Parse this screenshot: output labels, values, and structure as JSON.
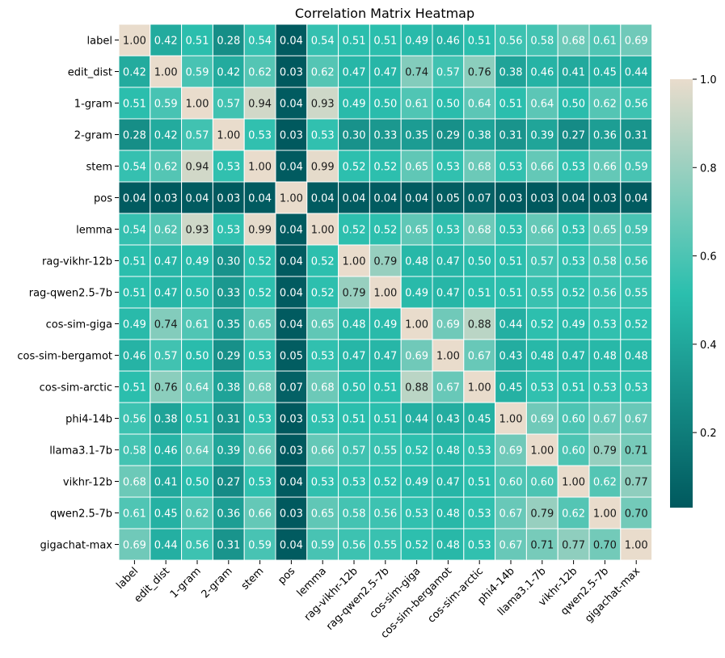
{
  "chart_data": {
    "type": "heatmap",
    "title": "Correlation Matrix Heatmap",
    "labels": [
      "label",
      "edit_dist",
      "1-gram",
      "2-gram",
      "stem",
      "pos",
      "lemma",
      "rag-vikhr-12b",
      "rag-qwen2.5-7b",
      "cos-sim-giga",
      "cos-sim-bergamot",
      "cos-sim-arctic",
      "phi4-14b",
      "llama3.1-7b",
      "vikhr-12b",
      "qwen2.5-7b",
      "gigachat-max"
    ],
    "matrix": [
      [
        1.0,
        0.42,
        0.51,
        0.28,
        0.54,
        0.04,
        0.54,
        0.51,
        0.51,
        0.49,
        0.46,
        0.51,
        0.56,
        0.58,
        0.68,
        0.61,
        0.69
      ],
      [
        0.42,
        1.0,
        0.59,
        0.42,
        0.62,
        0.03,
        0.62,
        0.47,
        0.47,
        0.74,
        0.57,
        0.76,
        0.38,
        0.46,
        0.41,
        0.45,
        0.44
      ],
      [
        0.51,
        0.59,
        1.0,
        0.57,
        0.94,
        0.04,
        0.93,
        0.49,
        0.5,
        0.61,
        0.5,
        0.64,
        0.51,
        0.64,
        0.5,
        0.62,
        0.56
      ],
      [
        0.28,
        0.42,
        0.57,
        1.0,
        0.53,
        0.03,
        0.53,
        0.3,
        0.33,
        0.35,
        0.29,
        0.38,
        0.31,
        0.39,
        0.27,
        0.36,
        0.31
      ],
      [
        0.54,
        0.62,
        0.94,
        0.53,
        1.0,
        0.04,
        0.99,
        0.52,
        0.52,
        0.65,
        0.53,
        0.68,
        0.53,
        0.66,
        0.53,
        0.66,
        0.59
      ],
      [
        0.04,
        0.03,
        0.04,
        0.03,
        0.04,
        1.0,
        0.04,
        0.04,
        0.04,
        0.04,
        0.05,
        0.07,
        0.03,
        0.03,
        0.04,
        0.03,
        0.04
      ],
      [
        0.54,
        0.62,
        0.93,
        0.53,
        0.99,
        0.04,
        1.0,
        0.52,
        0.52,
        0.65,
        0.53,
        0.68,
        0.53,
        0.66,
        0.53,
        0.65,
        0.59
      ],
      [
        0.51,
        0.47,
        0.49,
        0.3,
        0.52,
        0.04,
        0.52,
        1.0,
        0.79,
        0.48,
        0.47,
        0.5,
        0.51,
        0.57,
        0.53,
        0.58,
        0.56
      ],
      [
        0.51,
        0.47,
        0.5,
        0.33,
        0.52,
        0.04,
        0.52,
        0.79,
        1.0,
        0.49,
        0.47,
        0.51,
        0.51,
        0.55,
        0.52,
        0.56,
        0.55
      ],
      [
        0.49,
        0.74,
        0.61,
        0.35,
        0.65,
        0.04,
        0.65,
        0.48,
        0.49,
        1.0,
        0.69,
        0.88,
        0.44,
        0.52,
        0.49,
        0.53,
        0.52
      ],
      [
        0.46,
        0.57,
        0.5,
        0.29,
        0.53,
        0.05,
        0.53,
        0.47,
        0.47,
        0.69,
        1.0,
        0.67,
        0.43,
        0.48,
        0.47,
        0.48,
        0.48
      ],
      [
        0.51,
        0.76,
        0.64,
        0.38,
        0.68,
        0.07,
        0.68,
        0.5,
        0.51,
        0.88,
        0.67,
        1.0,
        0.45,
        0.53,
        0.51,
        0.53,
        0.53
      ],
      [
        0.56,
        0.38,
        0.51,
        0.31,
        0.53,
        0.03,
        0.53,
        0.51,
        0.51,
        0.44,
        0.43,
        0.45,
        1.0,
        0.69,
        0.6,
        0.67,
        0.67
      ],
      [
        0.58,
        0.46,
        0.64,
        0.39,
        0.66,
        0.03,
        0.66,
        0.57,
        0.55,
        0.52,
        0.48,
        0.53,
        0.69,
        1.0,
        0.6,
        0.79,
        0.71
      ],
      [
        0.68,
        0.41,
        0.5,
        0.27,
        0.53,
        0.04,
        0.53,
        0.53,
        0.52,
        0.49,
        0.47,
        0.51,
        0.6,
        0.6,
        1.0,
        0.62,
        0.77
      ],
      [
        0.61,
        0.45,
        0.62,
        0.36,
        0.66,
        0.03,
        0.65,
        0.58,
        0.56,
        0.53,
        0.48,
        0.53,
        0.67,
        0.79,
        0.62,
        1.0,
        0.7
      ],
      [
        0.69,
        0.44,
        0.56,
        0.31,
        0.59,
        0.04,
        0.59,
        0.56,
        0.55,
        0.52,
        0.48,
        0.53,
        0.67,
        0.71,
        0.77,
        0.7,
        1.0
      ]
    ],
    "value_range": [
      0.03,
      1.0
    ],
    "colorbar_ticks": [
      0.2,
      0.4,
      0.6,
      0.8,
      1.0
    ],
    "colormap": [
      "#00595e",
      "#2bbfae",
      "#e9dccc"
    ],
    "annotation_colors": {
      "light": "#ffffff",
      "dark": "#1a1a1a"
    },
    "legend": "right"
  }
}
